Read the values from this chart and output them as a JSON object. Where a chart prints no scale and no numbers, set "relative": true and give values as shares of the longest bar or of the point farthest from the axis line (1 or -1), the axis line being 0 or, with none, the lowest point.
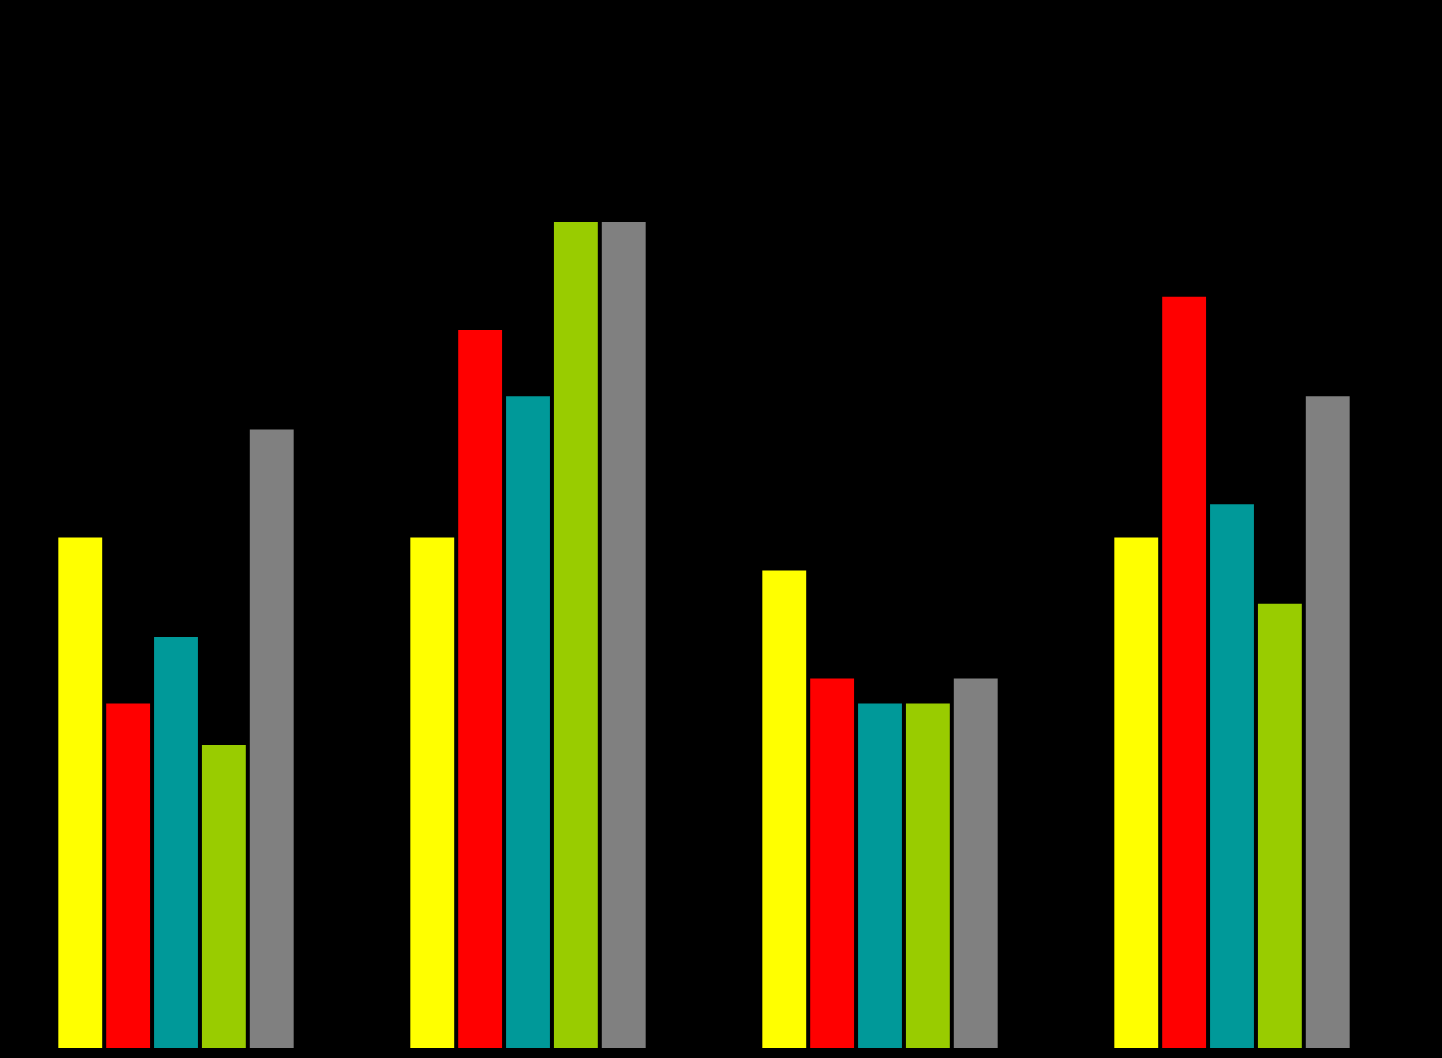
{
  "chart_data": {
    "type": "bar",
    "relative": true,
    "legend": false,
    "categories": [
      null,
      null,
      null,
      null
    ],
    "series": [
      {
        "color": "#ffff00",
        "values": [
          0.62,
          0.62,
          0.58,
          0.62
        ]
      },
      {
        "color": "#ff0000",
        "values": [
          0.42,
          0.87,
          0.45,
          0.91
        ]
      },
      {
        "color": "#009999",
        "values": [
          0.5,
          0.79,
          0.42,
          0.66
        ]
      },
      {
        "color": "#99cc00",
        "values": [
          0.37,
          1,
          0.42,
          0.54
        ]
      },
      {
        "color": "#808080",
        "values": [
          0.75,
          1,
          0.45,
          0.79
        ]
      }
    ]
  }
}
